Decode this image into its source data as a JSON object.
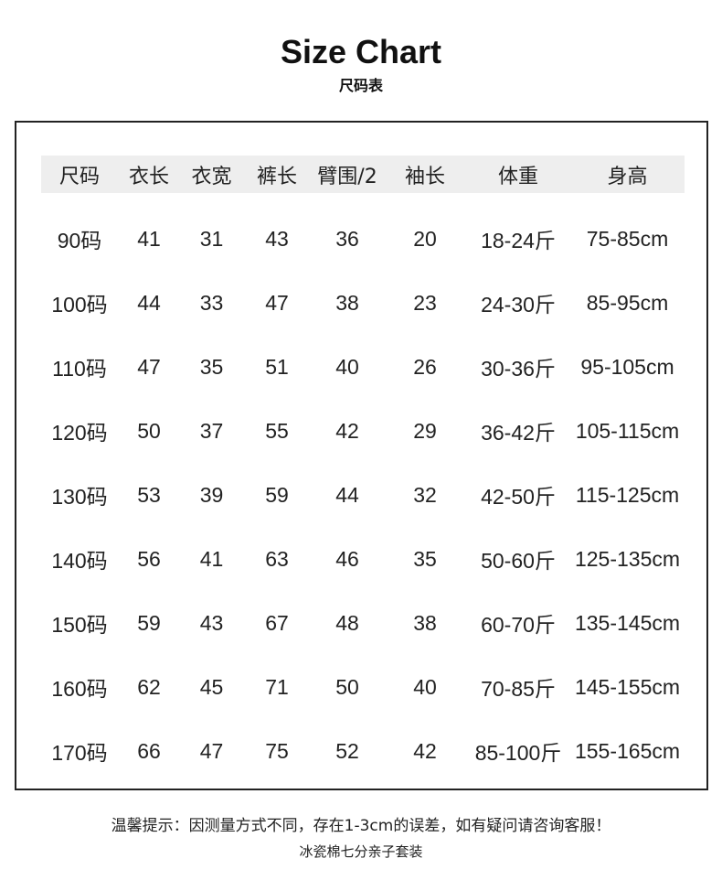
{
  "title": "Size Chart",
  "subtitle": "尺码表",
  "table": {
    "headers": [
      "尺码",
      "衣长",
      "衣宽",
      "裤长",
      "臂围/2",
      "袖长",
      "体重",
      "身高"
    ],
    "rows": [
      [
        "90码",
        "41",
        "31",
        "43",
        "36",
        "20",
        "18-24斤",
        "75-85cm"
      ],
      [
        "100码",
        "44",
        "33",
        "47",
        "38",
        "23",
        "24-30斤",
        "85-95cm"
      ],
      [
        "110码",
        "47",
        "35",
        "51",
        "40",
        "26",
        "30-36斤",
        "95-105cm"
      ],
      [
        "120码",
        "50",
        "37",
        "55",
        "42",
        "29",
        "36-42斤",
        "105-115cm"
      ],
      [
        "130码",
        "53",
        "39",
        "59",
        "44",
        "32",
        "42-50斤",
        "115-125cm"
      ],
      [
        "140码",
        "56",
        "41",
        "63",
        "46",
        "35",
        "50-60斤",
        "125-135cm"
      ],
      [
        "150码",
        "59",
        "43",
        "67",
        "48",
        "38",
        "60-70斤",
        "135-145cm"
      ],
      [
        "160码",
        "62",
        "45",
        "71",
        "50",
        "40",
        "70-85斤",
        "145-155cm"
      ],
      [
        "170码",
        "66",
        "47",
        "75",
        "52",
        "42",
        "85-100斤",
        "155-165cm"
      ]
    ]
  },
  "note": "温馨提示：因测量方式不同，存在1-3cm的误差，如有疑问请咨询客服！",
  "footer": "冰瓷棉七分亲子套装"
}
